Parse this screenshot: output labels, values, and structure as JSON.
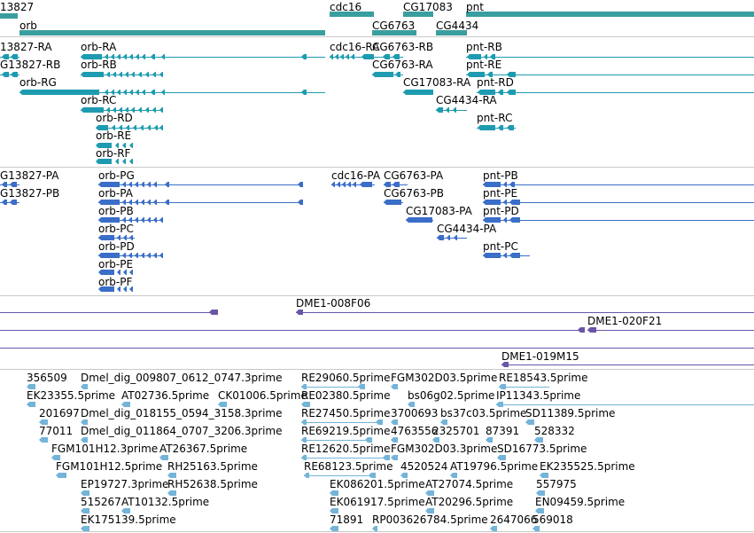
{
  "colors": {
    "gene": "#3a9e9e",
    "transcript": "#1e9bb0",
    "protein": "#3a6ec8",
    "clone": "#6a55a8",
    "est": "#74b4d8",
    "divider": "#c8c8c8"
  },
  "tracks": [
    {
      "name": "genes",
      "color_key": "gene"
    },
    {
      "name": "transcripts",
      "color_key": "transcript"
    },
    {
      "name": "proteins",
      "color_key": "protein"
    },
    {
      "name": "clones",
      "color_key": "clone"
    },
    {
      "name": "ests",
      "color_key": "est"
    }
  ],
  "features": [
    {
      "id": "g_13827",
      "track": "genes",
      "label": "13827"
    },
    {
      "id": "g_orb",
      "track": "genes",
      "label": "orb"
    },
    {
      "id": "g_cdc16",
      "track": "genes",
      "label": "cdc16"
    },
    {
      "id": "g_cg17083",
      "track": "genes",
      "label": "CG17083"
    },
    {
      "id": "g_pnt",
      "track": "genes",
      "label": "pnt"
    },
    {
      "id": "g_cg6763",
      "track": "genes",
      "label": "CG6763"
    },
    {
      "id": "g_cg4434",
      "track": "genes",
      "label": "CG4434"
    },
    {
      "id": "t_13827ra",
      "track": "transcripts",
      "label": "13827-RA"
    },
    {
      "id": "t_orbra",
      "track": "transcripts",
      "label": "orb-RA"
    },
    {
      "id": "t_cdc16ra",
      "track": "transcripts",
      "label": "cdc16-RA"
    },
    {
      "id": "t_cg6763rb",
      "track": "transcripts",
      "label": "CG6763-RB"
    },
    {
      "id": "t_pntrb",
      "track": "transcripts",
      "label": "pnt-RB"
    },
    {
      "id": "t_cg13827rb",
      "track": "transcripts",
      "label": "G13827-RB"
    },
    {
      "id": "t_orbrb",
      "track": "transcripts",
      "label": "orb-RB"
    },
    {
      "id": "t_cg6763ra",
      "track": "transcripts",
      "label": "CG6763-RA"
    },
    {
      "id": "t_pntre",
      "track": "transcripts",
      "label": "pnt-RE"
    },
    {
      "id": "t_orbrg",
      "track": "transcripts",
      "label": "orb-RG"
    },
    {
      "id": "t_cg17083ra",
      "track": "transcripts",
      "label": "CG17083-RA"
    },
    {
      "id": "t_pntrd",
      "track": "transcripts",
      "label": "pnt-RD"
    },
    {
      "id": "t_orbrc",
      "track": "transcripts",
      "label": "orb-RC"
    },
    {
      "id": "t_cg4434ra",
      "track": "transcripts",
      "label": "CG4434-RA"
    },
    {
      "id": "t_orbrd",
      "track": "transcripts",
      "label": "orb-RD"
    },
    {
      "id": "t_pntrc",
      "track": "transcripts",
      "label": "pnt-RC"
    },
    {
      "id": "t_orbre",
      "track": "transcripts",
      "label": "orb-RE"
    },
    {
      "id": "t_orbrf",
      "track": "transcripts",
      "label": "orb-RF"
    },
    {
      "id": "p_cg13827pa",
      "track": "proteins",
      "label": "G13827-PA"
    },
    {
      "id": "p_orbpg",
      "track": "proteins",
      "label": "orb-PG"
    },
    {
      "id": "p_cdc16pa",
      "track": "proteins",
      "label": "cdc16-PA"
    },
    {
      "id": "p_cg6763pa",
      "track": "proteins",
      "label": "CG6763-PA"
    },
    {
      "id": "p_pntpb",
      "track": "proteins",
      "label": "pnt-PB"
    },
    {
      "id": "p_cg13827pb",
      "track": "proteins",
      "label": "G13827-PB"
    },
    {
      "id": "p_orbpa",
      "track": "proteins",
      "label": "orb-PA"
    },
    {
      "id": "p_cg6763pb",
      "track": "proteins",
      "label": "CG6763-PB"
    },
    {
      "id": "p_pntpe",
      "track": "proteins",
      "label": "pnt-PE"
    },
    {
      "id": "p_orbpb",
      "track": "proteins",
      "label": "orb-PB"
    },
    {
      "id": "p_cg17083pa",
      "track": "proteins",
      "label": "CG17083-PA"
    },
    {
      "id": "p_pntpd",
      "track": "proteins",
      "label": "pnt-PD"
    },
    {
      "id": "p_orbpc",
      "track": "proteins",
      "label": "orb-PC"
    },
    {
      "id": "p_cg4434pa",
      "track": "proteins",
      "label": "CG4434-PA"
    },
    {
      "id": "p_orbpd",
      "track": "proteins",
      "label": "orb-PD"
    },
    {
      "id": "p_pntpc",
      "track": "proteins",
      "label": "pnt-PC"
    },
    {
      "id": "p_orbpe",
      "track": "proteins",
      "label": "orb-PE"
    },
    {
      "id": "p_orbpf",
      "track": "proteins",
      "label": "orb-PF"
    },
    {
      "id": "c_008f06",
      "track": "clones",
      "label": "DME1-008F06"
    },
    {
      "id": "c_020f21",
      "track": "clones",
      "label": "DME1-020F21"
    },
    {
      "id": "c_019m15",
      "track": "clones",
      "label": "DME1-019M15"
    },
    {
      "id": "e_356509",
      "track": "ests",
      "label": "356509"
    },
    {
      "id": "e_dmeldig009807",
      "track": "ests",
      "label": "Dmel_dig_009807_0612_0747.3prime"
    },
    {
      "id": "e_re29060",
      "track": "ests",
      "label": "RE29060.5prime"
    },
    {
      "id": "e_fgm302d03_5",
      "track": "ests",
      "label": "FGM302D03.5prime"
    },
    {
      "id": "e_re18543",
      "track": "ests",
      "label": "RE18543.5prime"
    },
    {
      "id": "e_ek2335",
      "track": "ests",
      "label": "EK23355.5prime"
    },
    {
      "id": "e_at02736",
      "track": "ests",
      "label": "AT02736.5prime"
    },
    {
      "id": "e_ck01006",
      "track": "ests",
      "label": "CK01006.5prime"
    },
    {
      "id": "e_re02380",
      "track": "ests",
      "label": "RE02380.5prime"
    },
    {
      "id": "e_bs06g02",
      "track": "ests",
      "label": "bs06g02.5prime"
    },
    {
      "id": "e_ip11343",
      "track": "ests",
      "label": "IP11343.5prime"
    },
    {
      "id": "e_201697",
      "track": "ests",
      "label": "201697"
    },
    {
      "id": "e_dmeldig018155",
      "track": "ests",
      "label": "Dmel_dig_018155_0594_3158.3prime"
    },
    {
      "id": "e_re27450",
      "track": "ests",
      "label": "RE27450.5prime"
    },
    {
      "id": "e_3700693",
      "track": "ests",
      "label": "3700693"
    },
    {
      "id": "e_bs37c03",
      "track": "ests",
      "label": "bs37c03.5prime"
    },
    {
      "id": "e_sd11389",
      "track": "ests",
      "label": "SD11389.5prime"
    },
    {
      "id": "e_77011",
      "track": "ests",
      "label": "77011"
    },
    {
      "id": "e_dmeldig011864",
      "track": "ests",
      "label": "Dmel_dig_011864_0707_3206.3prime"
    },
    {
      "id": "e_re69219",
      "track": "ests",
      "label": "RE69219.5prime"
    },
    {
      "id": "e_4763556",
      "track": "ests",
      "label": "4763556"
    },
    {
      "id": "e_2325701",
      "track": "ests",
      "label": "2325701"
    },
    {
      "id": "e_87391",
      "track": "ests",
      "label": "87391"
    },
    {
      "id": "e_528332",
      "track": "ests",
      "label": "528332"
    },
    {
      "id": "e_fgm101h12_3",
      "track": "ests",
      "label": "FGM101H12.3prime"
    },
    {
      "id": "e_at26367",
      "track": "ests",
      "label": "AT26367.5prime"
    },
    {
      "id": "e_re12620",
      "track": "ests",
      "label": "RE12620.5prime"
    },
    {
      "id": "e_fgm302d03_3",
      "track": "ests",
      "label": "FGM302D03.3prime"
    },
    {
      "id": "e_sd16773",
      "track": "ests",
      "label": "SD16773.5prime"
    },
    {
      "id": "e_fgm101h12_5",
      "track": "ests",
      "label": "FGM101H12.5prime"
    },
    {
      "id": "e_rh25163",
      "track": "ests",
      "label": "RH25163.5prime"
    },
    {
      "id": "e_re68123",
      "track": "ests",
      "label": "RE68123.5prime"
    },
    {
      "id": "e_4520524",
      "track": "ests",
      "label": "4520524"
    },
    {
      "id": "e_at19796",
      "track": "ests",
      "label": "AT19796.5prime"
    },
    {
      "id": "e_ek235525",
      "track": "ests",
      "label": "EK235525.5prime"
    },
    {
      "id": "e_ep19727",
      "track": "ests",
      "label": "EP19727.3prime"
    },
    {
      "id": "e_rh52638",
      "track": "ests",
      "label": "RH52638.5prime"
    },
    {
      "id": "e_ek086201",
      "track": "ests",
      "label": "EK086201.5prime"
    },
    {
      "id": "e_at27074",
      "track": "ests",
      "label": "AT27074.5prime"
    },
    {
      "id": "e_557975",
      "track": "ests",
      "label": "557975"
    },
    {
      "id": "e_515267",
      "track": "ests",
      "label": "515267"
    },
    {
      "id": "e_at10132",
      "track": "ests",
      "label": "AT10132.5prime"
    },
    {
      "id": "e_ek061917",
      "track": "ests",
      "label": "EK061917.5prime"
    },
    {
      "id": "e_at20296",
      "track": "ests",
      "label": "AT20296.5prime"
    },
    {
      "id": "e_en09459",
      "track": "ests",
      "label": "EN09459.5prime"
    },
    {
      "id": "e_ek175139",
      "track": "ests",
      "label": "EK175139.5prime"
    },
    {
      "id": "e_71891",
      "track": "ests",
      "label": "71891"
    },
    {
      "id": "e_rp003626784",
      "track": "ests",
      "label": "RP003626784.5prime"
    },
    {
      "id": "e_2647066",
      "track": "ests",
      "label": "2647066"
    },
    {
      "id": "e_569018",
      "track": "ests",
      "label": "569018"
    }
  ]
}
